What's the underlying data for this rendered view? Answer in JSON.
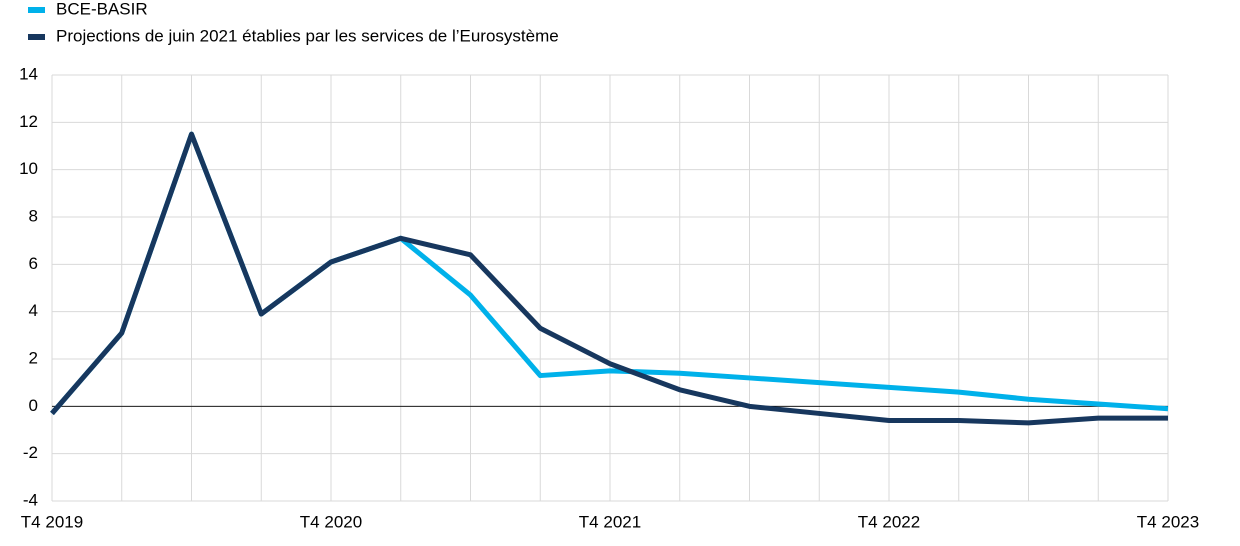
{
  "chart_data": {
    "type": "line",
    "categories": [
      "T4 2019",
      null,
      null,
      null,
      "T4 2020",
      null,
      null,
      null,
      "T4 2021",
      null,
      null,
      null,
      "T4 2022",
      null,
      null,
      null,
      "T4 2023"
    ],
    "series": [
      {
        "name": "BCE-BASIR",
        "color": "#00b1ea",
        "values": [
          -0.3,
          3.1,
          11.5,
          3.9,
          6.1,
          7.1,
          4.7,
          1.3,
          1.5,
          1.4,
          1.2,
          1.0,
          0.8,
          0.6,
          0.3,
          0.1,
          -0.1
        ]
      },
      {
        "name": "Projections de juin 2021 établies par les services de l’Eurosystème",
        "color": "#17375e",
        "values": [
          -0.3,
          3.1,
          11.5,
          3.9,
          6.1,
          7.1,
          6.4,
          3.3,
          1.8,
          0.7,
          0.0,
          -0.3,
          -0.6,
          -0.6,
          -0.7,
          -0.5,
          -0.5
        ]
      }
    ],
    "ylim": [
      -4,
      14
    ],
    "yticks": [
      -4,
      -2,
      0,
      2,
      4,
      6,
      8,
      10,
      12,
      14
    ],
    "grid": true,
    "legend": "top-left"
  }
}
